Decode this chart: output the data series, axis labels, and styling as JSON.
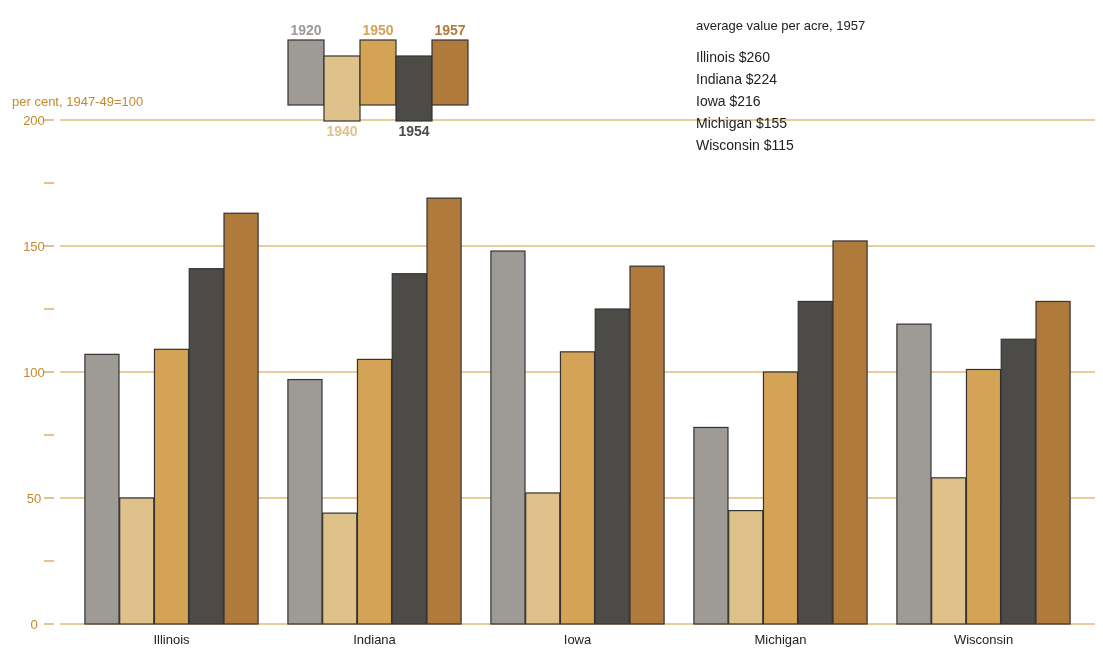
{
  "chart_data": {
    "type": "bar",
    "ylabel": "per cent, 1947-49=100",
    "categories": [
      "Illinois",
      "Indiana",
      "Iowa",
      "Michigan",
      "Wisconsin"
    ],
    "series": [
      {
        "name": "1920",
        "color": "#9e9b96",
        "values": [
          107,
          97,
          148,
          78,
          119
        ]
      },
      {
        "name": "1940",
        "color": "#dfc28a",
        "values": [
          50,
          44,
          52,
          45,
          58
        ]
      },
      {
        "name": "1950",
        "color": "#d4a355",
        "values": [
          109,
          105,
          108,
          100,
          101
        ]
      },
      {
        "name": "1954",
        "color": "#4d4b48",
        "values": [
          141,
          139,
          125,
          128,
          113
        ]
      },
      {
        "name": "1957",
        "color": "#b07a3c",
        "values": [
          163,
          169,
          142,
          152,
          128
        ]
      }
    ],
    "ylim": [
      0,
      200
    ],
    "yticks": [
      0,
      {
        "value": 25,
        "label": null
      },
      50,
      {
        "value": 75,
        "label": null
      },
      100,
      {
        "value": 125,
        "label": null
      },
      150,
      {
        "value": 175,
        "label": null
      },
      200
    ],
    "grid": "y",
    "legend": "top",
    "annotations": [
      "average value per acre, 1957",
      "Illinois $260",
      "Indiana $224",
      "Iowa $216",
      "Michigan $155",
      "Wisconsin $115"
    ]
  }
}
